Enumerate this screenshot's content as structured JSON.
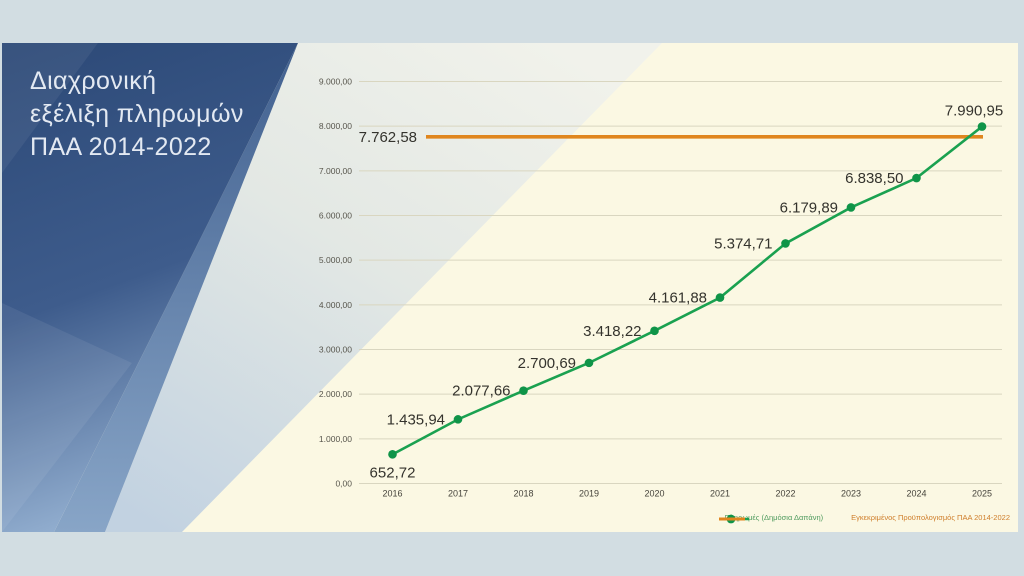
{
  "slide": {
    "title_lines": [
      "Διαχρονική",
      "εξέλιξη πληρωμών",
      "ΠΑΑ 2014-2022"
    ]
  },
  "chart_data": {
    "type": "line",
    "title": "Διαχρονική εξέλιξη πληρωμών ΠΑΑ 2014-2022",
    "x_labels": [
      "2016",
      "2017",
      "2018",
      "2019",
      "2020",
      "2021",
      "2022",
      "2023",
      "2024",
      "2025"
    ],
    "y_ticks": [
      {
        "value": 9000,
        "label": "9.000,00"
      },
      {
        "value": 8000,
        "label": "8.000,00"
      },
      {
        "value": 7000,
        "label": "7.000,00"
      },
      {
        "value": 6000,
        "label": "6.000,00"
      },
      {
        "value": 5000,
        "label": "5.000,00"
      },
      {
        "value": 4000,
        "label": "4.000,00"
      },
      {
        "value": 3000,
        "label": "3.000,00"
      },
      {
        "value": 2000,
        "label": "2.000,00"
      },
      {
        "value": 1000,
        "label": "1.000,00"
      },
      {
        "value": 0,
        "label": "0,00"
      }
    ],
    "ylim": [
      0,
      9000
    ],
    "grid": true,
    "legend_position": "bottom-right",
    "series": [
      {
        "name": "Πληρωμές (Δημόσια Δαπάνη)",
        "type": "line",
        "color": "#1aa150",
        "marker_color": "#0f9448",
        "values": [
          652.72,
          1435.94,
          2077.66,
          2700.69,
          3418.22,
          4161.88,
          5374.71,
          6179.89,
          6838.5,
          7990.95
        ],
        "point_labels": [
          "652,72",
          "1.435,94",
          "2.077,66",
          "2.700,69",
          "3.418,22",
          "4.161,88",
          "5.374,71",
          "6.179,89",
          "6.838,50",
          "7.990,95"
        ]
      },
      {
        "name": "Εγκεκριμένος Προϋπολογισμός ΠΑΑ 2014-2022",
        "type": "constant-line",
        "color": "#e0861e",
        "value": 7762.58,
        "label": "7.762,58"
      }
    ]
  },
  "colors": {
    "payments": "#1aa150",
    "payments_marker": "#0f9448",
    "budget": "#e0861e",
    "slide_bg": "#fbf8e3",
    "panel_navy": "#2c4977",
    "outer_bg": "#d2dde2",
    "gridline": "#d9d6c0"
  }
}
